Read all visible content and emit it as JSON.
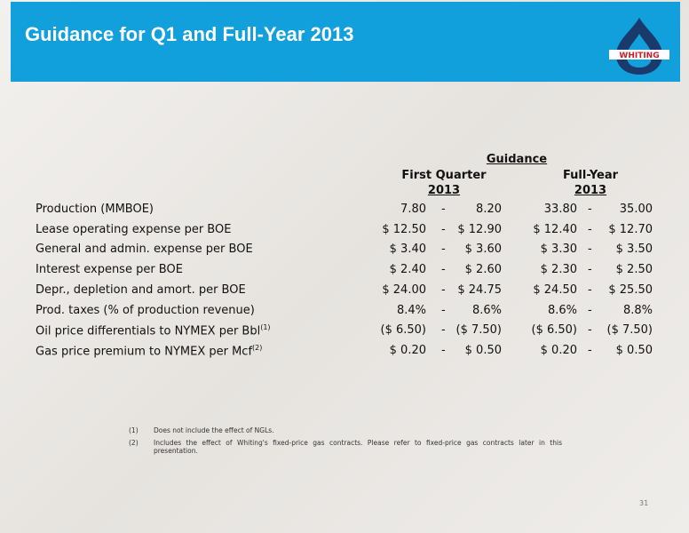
{
  "header": {
    "title": "Guidance for Q1 and Full-Year 2013",
    "logo": "WHITING"
  },
  "table": {
    "group_header": "Guidance",
    "columns": [
      {
        "line1": "First Quarter",
        "line2": "2013"
      },
      {
        "line1": "Full-Year",
        "line2": "2013"
      }
    ],
    "separator": "-",
    "rows": [
      {
        "label": "Production (MMBOE)",
        "cells": [
          "7.80",
          "8.20",
          "33.80",
          "35.00"
        ]
      },
      {
        "label": "Lease operating expense per BOE",
        "cells": [
          "$ 12.50",
          "$ 12.90",
          "$ 12.40",
          "$ 12.70"
        ]
      },
      {
        "label": "General and admin. expense per BOE",
        "cells": [
          "$ 3.40",
          "$ 3.60",
          "$ 3.30",
          "$ 3.50"
        ]
      },
      {
        "label": "Interest expense per BOE",
        "cells": [
          "$ 2.40",
          "$ 2.60",
          "$ 2.30",
          "$ 2.50"
        ]
      },
      {
        "label": "Depr., depletion and amort. per BOE",
        "cells": [
          "$ 24.00",
          "$ 24.75",
          "$ 24.50",
          "$ 25.50"
        ]
      },
      {
        "label": "Prod. taxes (% of production revenue)",
        "cells": [
          "8.4%",
          "8.6%",
          "8.6%",
          "8.8%"
        ]
      },
      {
        "label": "Oil price differentials to NYMEX per Bbl",
        "note": "(1)",
        "cells": [
          "($ 6.50)",
          "($ 7.50)",
          "($ 6.50)",
          "($ 7.50)"
        ]
      },
      {
        "label": "Gas price premium to NYMEX per Mcf",
        "note": "(2)",
        "cells": [
          "$ 0.20",
          "$ 0.50",
          "$ 0.20",
          "$ 0.50"
        ]
      }
    ]
  },
  "footnotes": [
    {
      "marker": "(1)",
      "text": "Does not include the effect of NGLs."
    },
    {
      "marker": "(2)",
      "text": "Includes the effect of Whiting's fixed-price gas contracts. Please refer to fixed-price gas contracts later in this presentation."
    }
  ],
  "page_number": "31"
}
